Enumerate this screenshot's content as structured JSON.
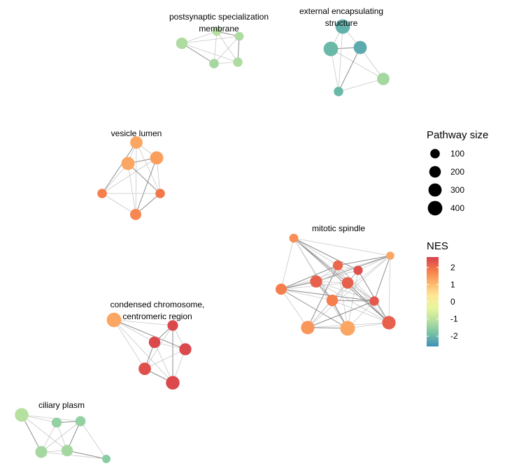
{
  "clusters": [
    {
      "label_lines": [
        "postsynaptic specialization",
        "membrane"
      ],
      "nodes": [
        {
          "size": 200,
          "nes": -1.2
        },
        {
          "size": 80,
          "nes": -1.1
        },
        {
          "size": 80,
          "nes": -1.2
        },
        {
          "size": 100,
          "nes": -1.3
        },
        {
          "size": 100,
          "nes": -1.2
        }
      ]
    },
    {
      "label_lines": [
        "external encapsulating",
        "structure"
      ],
      "nodes": [
        {
          "size": 400,
          "nes": -2.1
        },
        {
          "size": 400,
          "nes": -2.0
        },
        {
          "size": 300,
          "nes": -2.2
        },
        {
          "size": 250,
          "nes": -1.3
        },
        {
          "size": 100,
          "nes": -2.0
        }
      ]
    },
    {
      "label_lines": [
        "vesicle lumen"
      ],
      "nodes": [
        {
          "size": 250,
          "nes": 1.3
        },
        {
          "size": 300,
          "nes": 1.4
        },
        {
          "size": 300,
          "nes": 1.3
        },
        {
          "size": 100,
          "nes": 1.8
        },
        {
          "size": 100,
          "nes": 1.9
        },
        {
          "size": 180,
          "nes": 1.7
        }
      ]
    },
    {
      "label_lines": [
        "mitotic spindle"
      ],
      "nodes": [
        {
          "size": 80,
          "nes": 1.6
        },
        {
          "size": 50,
          "nes": 1.3
        },
        {
          "size": 120,
          "nes": 2.1
        },
        {
          "size": 90,
          "nes": 2.4
        },
        {
          "size": 180,
          "nes": 1.8
        },
        {
          "size": 230,
          "nes": 2.2
        },
        {
          "size": 200,
          "nes": 2.2
        },
        {
          "size": 200,
          "nes": 1.8
        },
        {
          "size": 100,
          "nes": 2.3
        },
        {
          "size": 320,
          "nes": 2.2
        },
        {
          "size": 320,
          "nes": 1.5
        },
        {
          "size": 420,
          "nes": 1.3
        }
      ]
    },
    {
      "label_lines": [
        "condensed chromosome,",
        "centromeric region"
      ],
      "nodes": [
        {
          "size": 400,
          "nes": 1.3
        },
        {
          "size": 150,
          "nes": 2.5
        },
        {
          "size": 200,
          "nes": 2.5
        },
        {
          "size": 230,
          "nes": 2.5
        },
        {
          "size": 250,
          "nes": 2.4
        },
        {
          "size": 330,
          "nes": 2.5
        }
      ]
    },
    {
      "label_lines": [
        "ciliary plasm"
      ],
      "nodes": [
        {
          "size": 330,
          "nes": -1.1
        },
        {
          "size": 120,
          "nes": -1.5
        },
        {
          "size": 130,
          "nes": -1.5
        },
        {
          "size": 220,
          "nes": -1.3
        },
        {
          "size": 200,
          "nes": -1.3
        },
        {
          "size": 60,
          "nes": -1.6
        }
      ]
    }
  ],
  "legend_size": {
    "title": "Pathway size",
    "entries": [
      {
        "label": "100",
        "size": 100
      },
      {
        "label": "200",
        "size": 200
      },
      {
        "label": "300",
        "size": 300
      },
      {
        "label": "400",
        "size": 400
      }
    ]
  },
  "legend_nes": {
    "title": "NES",
    "ticks": [
      "2",
      "1",
      "0",
      "-1",
      "-2"
    ],
    "range": [
      -2.6,
      2.6
    ],
    "colors": [
      "#d7414e",
      "#f57a4a",
      "#fdb46a",
      "#fee795",
      "#e8f59c",
      "#b5e0a0",
      "#74c1a4",
      "#3f90b9"
    ]
  }
}
